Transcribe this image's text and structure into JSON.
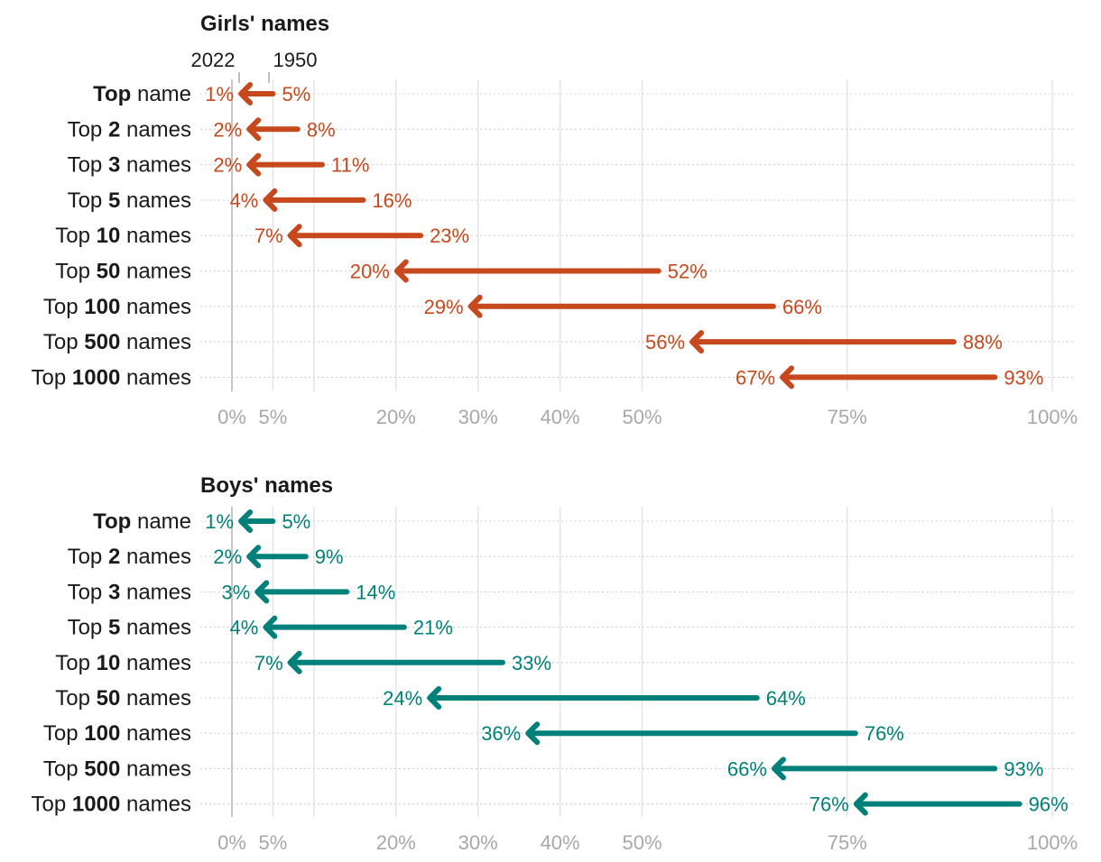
{
  "colors": {
    "girls": "#c7481c",
    "boys": "#00807a",
    "grid": "#e2e2e2",
    "zero_line": "#b8b8b8",
    "row_guide": "#d0d0d0",
    "tick_text": "#a8a8a8",
    "text": "#1a1a1a"
  },
  "legend": {
    "year_new": "2022",
    "year_old": "1950"
  },
  "chart_data": [
    {
      "type": "arrow",
      "title": "Girls' names",
      "series_color": "girls",
      "x_ticks": [
        0,
        5,
        20,
        30,
        40,
        50,
        75,
        100
      ],
      "x_tick_labels": [
        "0%",
        "5%",
        "20%",
        "30%",
        "40%",
        "50%",
        "75%",
        "100%"
      ],
      "extra_gridlines": [
        10
      ],
      "xlim": [
        0,
        100
      ],
      "rows": [
        {
          "prefix": "",
          "bold": "Top",
          "suffix": " name",
          "from": 5,
          "to": 1,
          "from_label": "5%",
          "to_label": "1%"
        },
        {
          "prefix": "Top ",
          "bold": "2",
          "suffix": " names",
          "from": 8,
          "to": 2,
          "from_label": "8%",
          "to_label": "2%"
        },
        {
          "prefix": "Top ",
          "bold": "3",
          "suffix": " names",
          "from": 11,
          "to": 2,
          "from_label": "11%",
          "to_label": "2%"
        },
        {
          "prefix": "Top ",
          "bold": "5",
          "suffix": " names",
          "from": 16,
          "to": 4,
          "from_label": "16%",
          "to_label": "4%"
        },
        {
          "prefix": "Top ",
          "bold": "10",
          "suffix": " names",
          "from": 23,
          "to": 7,
          "from_label": "23%",
          "to_label": "7%"
        },
        {
          "prefix": "Top ",
          "bold": "50",
          "suffix": " names",
          "from": 52,
          "to": 20,
          "from_label": "52%",
          "to_label": "20%"
        },
        {
          "prefix": "Top ",
          "bold": "100",
          "suffix": " names",
          "from": 66,
          "to": 29,
          "from_label": "66%",
          "to_label": "29%"
        },
        {
          "prefix": "Top ",
          "bold": "500",
          "suffix": " names",
          "from": 88,
          "to": 56,
          "from_label": "88%",
          "to_label": "56%"
        },
        {
          "prefix": "Top ",
          "bold": "1000",
          "suffix": " names",
          "from": 93,
          "to": 67,
          "from_label": "93%",
          "to_label": "67%"
        }
      ]
    },
    {
      "type": "arrow",
      "title": "Boys' names",
      "series_color": "boys",
      "x_ticks": [
        0,
        5,
        20,
        30,
        40,
        50,
        75,
        100
      ],
      "x_tick_labels": [
        "0%",
        "5%",
        "20%",
        "30%",
        "40%",
        "50%",
        "75%",
        "100%"
      ],
      "extra_gridlines": [
        10
      ],
      "xlim": [
        0,
        100
      ],
      "rows": [
        {
          "prefix": "",
          "bold": "Top",
          "suffix": " name",
          "from": 5,
          "to": 1,
          "from_label": "5%",
          "to_label": "1%"
        },
        {
          "prefix": "Top ",
          "bold": "2",
          "suffix": " names",
          "from": 9,
          "to": 2,
          "from_label": "9%",
          "to_label": "2%"
        },
        {
          "prefix": "Top ",
          "bold": "3",
          "suffix": " names",
          "from": 14,
          "to": 3,
          "from_label": "14%",
          "to_label": "3%"
        },
        {
          "prefix": "Top ",
          "bold": "5",
          "suffix": " names",
          "from": 21,
          "to": 4,
          "from_label": "21%",
          "to_label": "4%"
        },
        {
          "prefix": "Top ",
          "bold": "10",
          "suffix": " names",
          "from": 33,
          "to": 7,
          "from_label": "33%",
          "to_label": "7%"
        },
        {
          "prefix": "Top ",
          "bold": "50",
          "suffix": " names",
          "from": 64,
          "to": 24,
          "from_label": "64%",
          "to_label": "24%"
        },
        {
          "prefix": "Top ",
          "bold": "100",
          "suffix": " names",
          "from": 76,
          "to": 36,
          "from_label": "76%",
          "to_label": "36%"
        },
        {
          "prefix": "Top ",
          "bold": "500",
          "suffix": " names",
          "from": 93,
          "to": 66,
          "from_label": "93%",
          "to_label": "66%"
        },
        {
          "prefix": "Top ",
          "bold": "1000",
          "suffix": " names",
          "from": 96,
          "to": 76,
          "from_label": "96%",
          "to_label": "76%"
        }
      ]
    }
  ]
}
